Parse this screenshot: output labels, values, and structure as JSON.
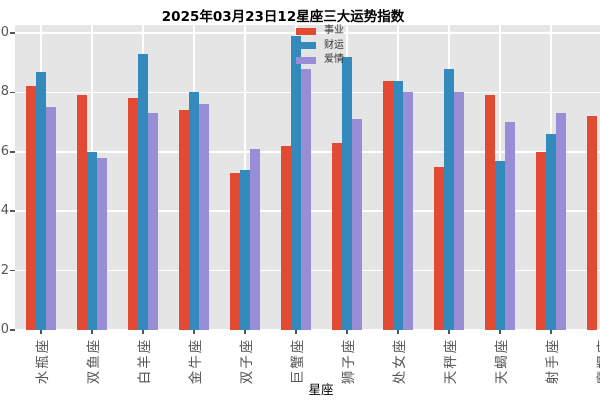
{
  "chart_data": {
    "type": "bar",
    "title": "2025年03月23日12星座三大运势指数",
    "xlabel": "星座",
    "ylabel": "",
    "categories": [
      "水瓶座",
      "双鱼座",
      "白羊座",
      "金牛座",
      "双子座",
      "巨蟹座",
      "狮子座",
      "处女座",
      "天秤座",
      "天蝎座",
      "射手座",
      "摩羯座"
    ],
    "series": [
      {
        "name": "事业",
        "color": "#E24A33",
        "values": [
          8.2,
          7.9,
          7.8,
          7.4,
          5.3,
          6.2,
          6.3,
          8.4,
          5.5,
          7.9,
          6.0,
          7.2
        ]
      },
      {
        "name": "财运",
        "color": "#348ABD",
        "values": [
          8.7,
          6.0,
          9.3,
          8.0,
          5.4,
          9.9,
          9.2,
          8.4,
          8.8,
          5.7,
          6.6,
          null
        ]
      },
      {
        "name": "爱情",
        "color": "#988ED5",
        "values": [
          7.5,
          5.8,
          7.3,
          7.6,
          6.1,
          8.8,
          7.1,
          8.0,
          8.0,
          7.0,
          7.3,
          null
        ]
      }
    ],
    "yticks": [
      0,
      2,
      4,
      6,
      8,
      10
    ],
    "ylim": [
      0,
      10.3
    ],
    "grid": true,
    "legend_position": "upper center",
    "colors": {
      "plot_background": "#E5E5E5",
      "grid_line": "#FFFFFF",
      "tick_label": "#555555",
      "axis_label": "#555555",
      "title": "#000000"
    },
    "notes": "right-most category partially cut off at image edge; only its first bar is visible"
  }
}
